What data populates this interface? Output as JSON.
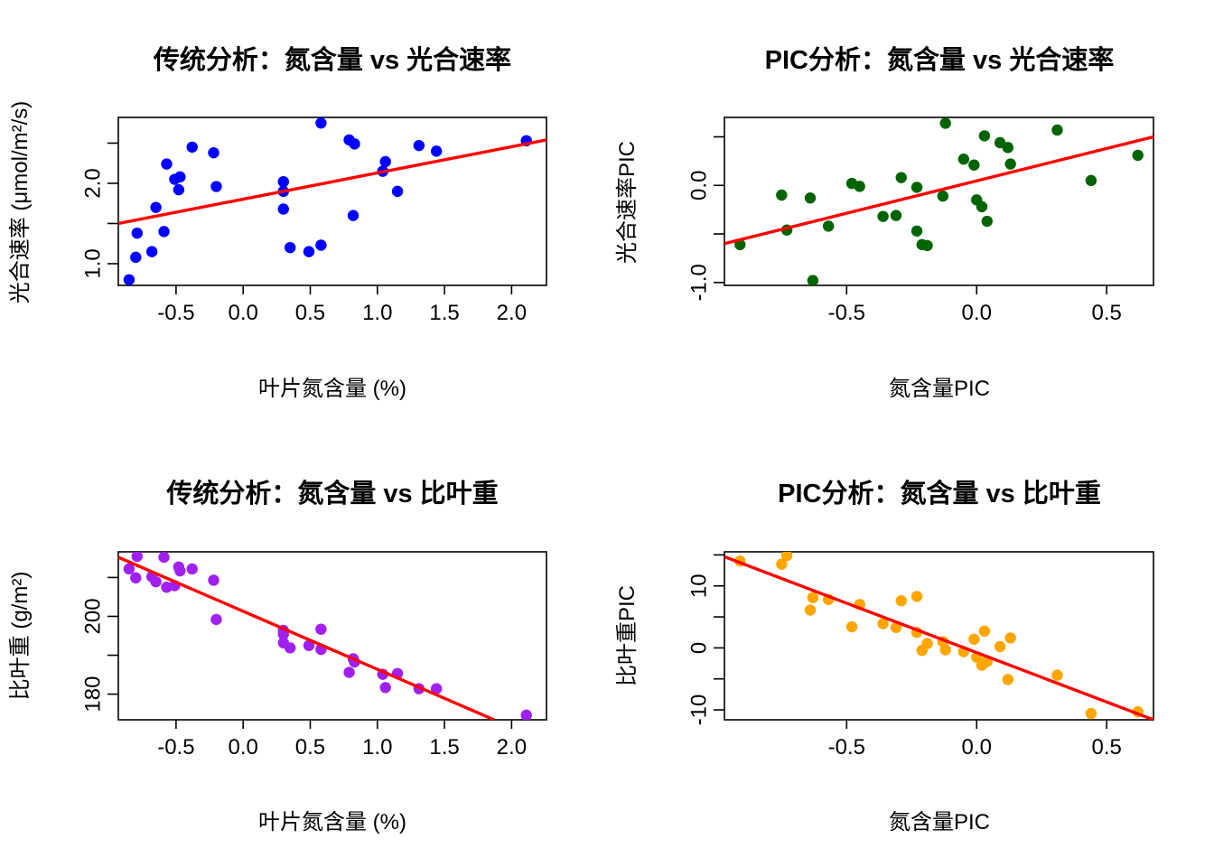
{
  "chart_data": [
    {
      "type": "scatter",
      "title": "传统分析：氮含量 vs 光合速率",
      "xlabel": "叶片氮含量 (%)",
      "ylabel": "光合速率 (μmol/m²/s)",
      "xlim": [
        -0.93,
        2.26
      ],
      "ylim": [
        0.73,
        2.82
      ],
      "xticks": [
        -0.5,
        0.0,
        0.5,
        1.0,
        1.5,
        2.0
      ],
      "xtick_labels": [
        "-0.5",
        "0.0",
        "0.5",
        "1.0",
        "1.5",
        "2.0"
      ],
      "yticks": [
        1.0,
        1.5,
        2.0,
        2.5
      ],
      "ytick_labels": [
        "1.0",
        "",
        "2.0",
        ""
      ],
      "point_color": "#0000ff",
      "line_color": "#ff0000",
      "fit_line": {
        "x": [
          -0.93,
          2.26
        ],
        "y": [
          1.5,
          2.54
        ]
      },
      "x": [
        -0.85,
        -0.8,
        -0.79,
        -0.68,
        -0.65,
        -0.59,
        -0.57,
        -0.51,
        -0.48,
        -0.47,
        -0.38,
        -0.22,
        -0.2,
        0.3,
        0.3,
        0.3,
        0.35,
        0.49,
        0.58,
        0.58,
        0.79,
        0.82,
        0.83,
        1.04,
        1.06,
        1.15,
        1.31,
        1.44,
        2.11
      ],
      "y": [
        0.8,
        1.08,
        1.38,
        1.15,
        1.7,
        1.4,
        2.24,
        2.05,
        1.92,
        2.08,
        2.45,
        2.38,
        1.96,
        1.68,
        1.9,
        2.02,
        1.2,
        1.15,
        2.75,
        1.23,
        2.54,
        1.6,
        2.49,
        2.15,
        2.27,
        1.9,
        2.47,
        2.4,
        2.53
      ]
    },
    {
      "type": "scatter",
      "title": "PIC分析：氮含量 vs 光合速率",
      "xlabel": "氮含量PIC",
      "ylabel": "光合速率PIC",
      "xlim": [
        -0.97,
        0.68
      ],
      "ylim": [
        -1.03,
        0.7
      ],
      "xticks": [
        -0.5,
        0.0,
        0.5
      ],
      "xtick_labels": [
        "-0.5",
        "0.0",
        "0.5"
      ],
      "yticks": [
        -1.0,
        -0.5,
        0.0,
        0.5
      ],
      "ytick_labels": [
        "-1.0",
        "",
        "0.0",
        ""
      ],
      "point_color": "#006400",
      "line_color": "#ff0000",
      "fit_line": {
        "x": [
          -0.97,
          0.68
        ],
        "y": [
          -0.6,
          0.5
        ]
      },
      "x": [
        -0.91,
        -0.75,
        -0.73,
        -0.64,
        -0.63,
        -0.57,
        -0.48,
        -0.45,
        -0.36,
        -0.31,
        -0.29,
        -0.23,
        -0.23,
        -0.21,
        -0.19,
        -0.13,
        -0.12,
        -0.05,
        -0.01,
        0.0,
        0.02,
        0.03,
        0.04,
        0.09,
        0.12,
        0.13,
        0.31,
        0.44,
        0.62
      ],
      "y": [
        -0.61,
        -0.1,
        -0.46,
        -0.13,
        -0.98,
        -0.42,
        0.02,
        -0.01,
        -0.32,
        -0.31,
        0.08,
        -0.02,
        -0.47,
        -0.61,
        -0.62,
        -0.11,
        0.64,
        0.27,
        0.21,
        -0.15,
        -0.22,
        0.51,
        -0.37,
        0.44,
        0.39,
        0.22,
        0.57,
        0.05,
        0.31
      ]
    },
    {
      "type": "scatter",
      "title": "传统分析：氮含量 vs 比叶重",
      "xlabel": "叶片氮含量 (%)",
      "ylabel": "比叶重 (g/m²)",
      "xlim": [
        -0.93,
        2.26
      ],
      "ylim": [
        173.4,
        216.6
      ],
      "xticks": [
        -0.5,
        0.0,
        0.5,
        1.0,
        1.5,
        2.0
      ],
      "xtick_labels": [
        "-0.5",
        "0.0",
        "0.5",
        "1.0",
        "1.5",
        "2.0"
      ],
      "yticks": [
        180,
        190,
        200,
        210
      ],
      "ytick_labels": [
        "180",
        "",
        "200",
        ""
      ],
      "point_color": "#a020f0",
      "line_color": "#ff0000",
      "fit_line": {
        "x": [
          -0.93,
          1.87
        ],
        "y": [
          215.2,
          173.4
        ]
      },
      "x": [
        -0.85,
        -0.8,
        -0.79,
        -0.68,
        -0.65,
        -0.59,
        -0.57,
        -0.51,
        -0.48,
        -0.47,
        -0.38,
        -0.22,
        -0.2,
        0.3,
        0.3,
        0.3,
        0.35,
        0.49,
        0.58,
        0.58,
        0.79,
        0.82,
        0.83,
        1.04,
        1.06,
        1.15,
        1.31,
        1.44,
        2.11
      ],
      "y": [
        212.2,
        209.9,
        215.4,
        210.2,
        208.9,
        215.2,
        207.5,
        207.9,
        212.7,
        211.7,
        212.2,
        209.3,
        199.2,
        196.4,
        195.4,
        193.2,
        191.9,
        192.5,
        191.5,
        196.7,
        185.6,
        189.1,
        188.3,
        185.1,
        181.7,
        185.3,
        181.4,
        181.4,
        174.6
      ]
    },
    {
      "type": "scatter",
      "title": "PIC分析：氮含量 vs 比叶重",
      "xlabel": "氮含量PIC",
      "ylabel": "比叶重PIC",
      "xlim": [
        -0.97,
        0.68
      ],
      "ylim": [
        -11.6,
        15.5
      ],
      "xticks": [
        -0.5,
        0.0,
        0.5
      ],
      "xtick_labels": [
        "-0.5",
        "0.0",
        "0.5"
      ],
      "yticks": [
        -10,
        -5,
        0,
        5,
        10,
        15
      ],
      "ytick_labels": [
        "-10",
        "",
        "0",
        "",
        "10",
        ""
      ],
      "point_color": "#ffa500",
      "line_color": "#ff0000",
      "fit_line": {
        "x": [
          -0.97,
          0.68
        ],
        "y": [
          14.7,
          -11.6
        ]
      },
      "x": [
        -0.91,
        -0.75,
        -0.73,
        -0.64,
        -0.63,
        -0.57,
        -0.48,
        -0.45,
        -0.36,
        -0.31,
        -0.29,
        -0.23,
        -0.23,
        -0.21,
        -0.19,
        -0.13,
        -0.12,
        -0.05,
        -0.01,
        0.0,
        0.02,
        0.03,
        0.04,
        0.09,
        0.12,
        0.13,
        0.31,
        0.44,
        0.62
      ],
      "y": [
        14.0,
        13.5,
        14.9,
        6.1,
        8.1,
        7.8,
        3.4,
        7.0,
        3.9,
        3.3,
        7.6,
        8.3,
        2.5,
        -0.4,
        0.7,
        1.0,
        -0.3,
        -0.6,
        1.4,
        -1.5,
        -2.8,
        2.7,
        -2.2,
        0.2,
        -5.1,
        1.6,
        -4.4,
        -10.6,
        -10.3
      ]
    }
  ]
}
